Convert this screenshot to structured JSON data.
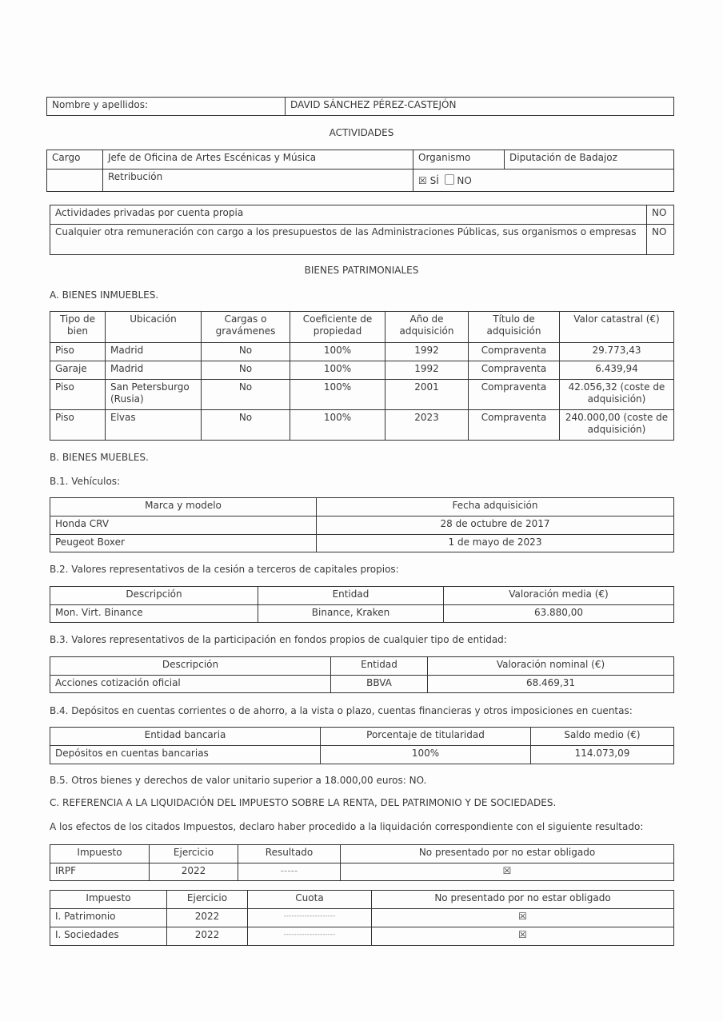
{
  "header": {
    "name_label": "Nombre y apellidos:",
    "name_value": "DAVID SÁNCHEZ PÉREZ-CASTEJÓN"
  },
  "activities": {
    "title": "ACTIVIDADES",
    "cargo_label": "Cargo",
    "cargo_value": "Jefe de Oficina de Artes Escénicas y Música",
    "organismo_label": "Organismo",
    "organismo_value": "Diputación de Badajoz",
    "retribucion_label": "Retribución",
    "si_mark": "☒",
    "si_label": "SÍ",
    "no_label": "NO",
    "retribucion_selected": "SÍ",
    "private": [
      {
        "label": "Actividades privadas por cuenta propia",
        "value": "NO"
      },
      {
        "label": "Cualquier otra remuneración con cargo a los presupuestos de las Administraciones Públicas, sus organismos o empresas",
        "value": "NO"
      }
    ]
  },
  "assets": {
    "title": "BIENES PATRIMONIALES",
    "real_estate": {
      "title": "A. BIENES INMUEBLES.",
      "headers": [
        "Tipo de bien",
        "Ubicación",
        "Cargas o gravámenes",
        "Coeficiente de propiedad",
        "Año de adquisición",
        "Título de adquisición",
        "Valor catastral (€)"
      ],
      "rows": [
        [
          "Piso",
          "Madrid",
          "No",
          "100%",
          "1992",
          "Compraventa",
          "29.773,43"
        ],
        [
          "Garaje",
          "Madrid",
          "No",
          "100%",
          "1992",
          "Compraventa",
          "6.439,94"
        ],
        [
          "Piso",
          "San Petersburgo (Rusia)",
          "No",
          "100%",
          "2001",
          "Compraventa",
          "42.056,32 (coste de adquisición)"
        ],
        [
          "Piso",
          "Elvas",
          "No",
          "100%",
          "2023",
          "Compraventa",
          "240.000,00 (coste de adquisición)"
        ]
      ]
    },
    "movables_title": "B. BIENES MUEBLES.",
    "vehicles": {
      "title": "B.1. Vehículos:",
      "headers": [
        "Marca y modelo",
        "Fecha adquisición"
      ],
      "rows": [
        [
          "Honda CRV",
          "28 de octubre de 2017"
        ],
        [
          "Peugeot Boxer",
          "1 de mayo de 2023"
        ]
      ]
    },
    "b2": {
      "title": "B.2. Valores representativos de la cesión a terceros de capitales propios:",
      "headers": [
        "Descripción",
        "Entidad",
        "Valoración media (€)"
      ],
      "rows": [
        [
          "Mon. Virt. Binance",
          "Binance, Kraken",
          "63.880,00"
        ]
      ]
    },
    "b3": {
      "title": "B.3. Valores representativos de la participación en fondos propios de cualquier tipo de entidad:",
      "headers": [
        "Descripción",
        "Entidad",
        "Valoración nominal (€)"
      ],
      "rows": [
        [
          "Acciones cotización oficial",
          "BBVA",
          "68.469,31"
        ]
      ]
    },
    "b4": {
      "title": "B.4. Depósitos en cuentas corrientes o de ahorro, a la vista o plazo, cuentas financieras y otros imposiciones en cuentas:",
      "headers": [
        "Entidad bancaria",
        "Porcentaje de titularidad",
        "Saldo medio (€)"
      ],
      "rows": [
        [
          "Depósitos en cuentas bancarias",
          "100%",
          "114.073,09"
        ]
      ]
    },
    "b5": "B.5. Otros bienes y derechos de valor unitario superior a 18.000,00 euros: NO."
  },
  "taxes": {
    "title": "C. REFERENCIA A LA LIQUIDACIÓN DEL IMPUESTO SOBRE LA RENTA, DEL PATRIMONIO Y DE SOCIEDADES.",
    "intro": "A los efectos de los citados Impuestos, declaro haber procedido a la liquidación correspondiente con el siguiente resultado:",
    "irpf": {
      "headers": [
        "Impuesto",
        "Ejercicio",
        "Resultado",
        "No presentado por no estar obligado"
      ],
      "rows": [
        [
          "IRPF",
          "2022",
          "-----",
          "☒"
        ]
      ]
    },
    "others": {
      "headers": [
        "Impuesto",
        "Ejercicio",
        "Cuota",
        "No presentado por no estar obligado"
      ],
      "rows": [
        [
          "I. Patrimonio",
          "2022",
          "--------------------",
          "☒"
        ],
        [
          "I. Sociedades",
          "2022",
          "--------------------",
          "☒"
        ]
      ]
    }
  }
}
